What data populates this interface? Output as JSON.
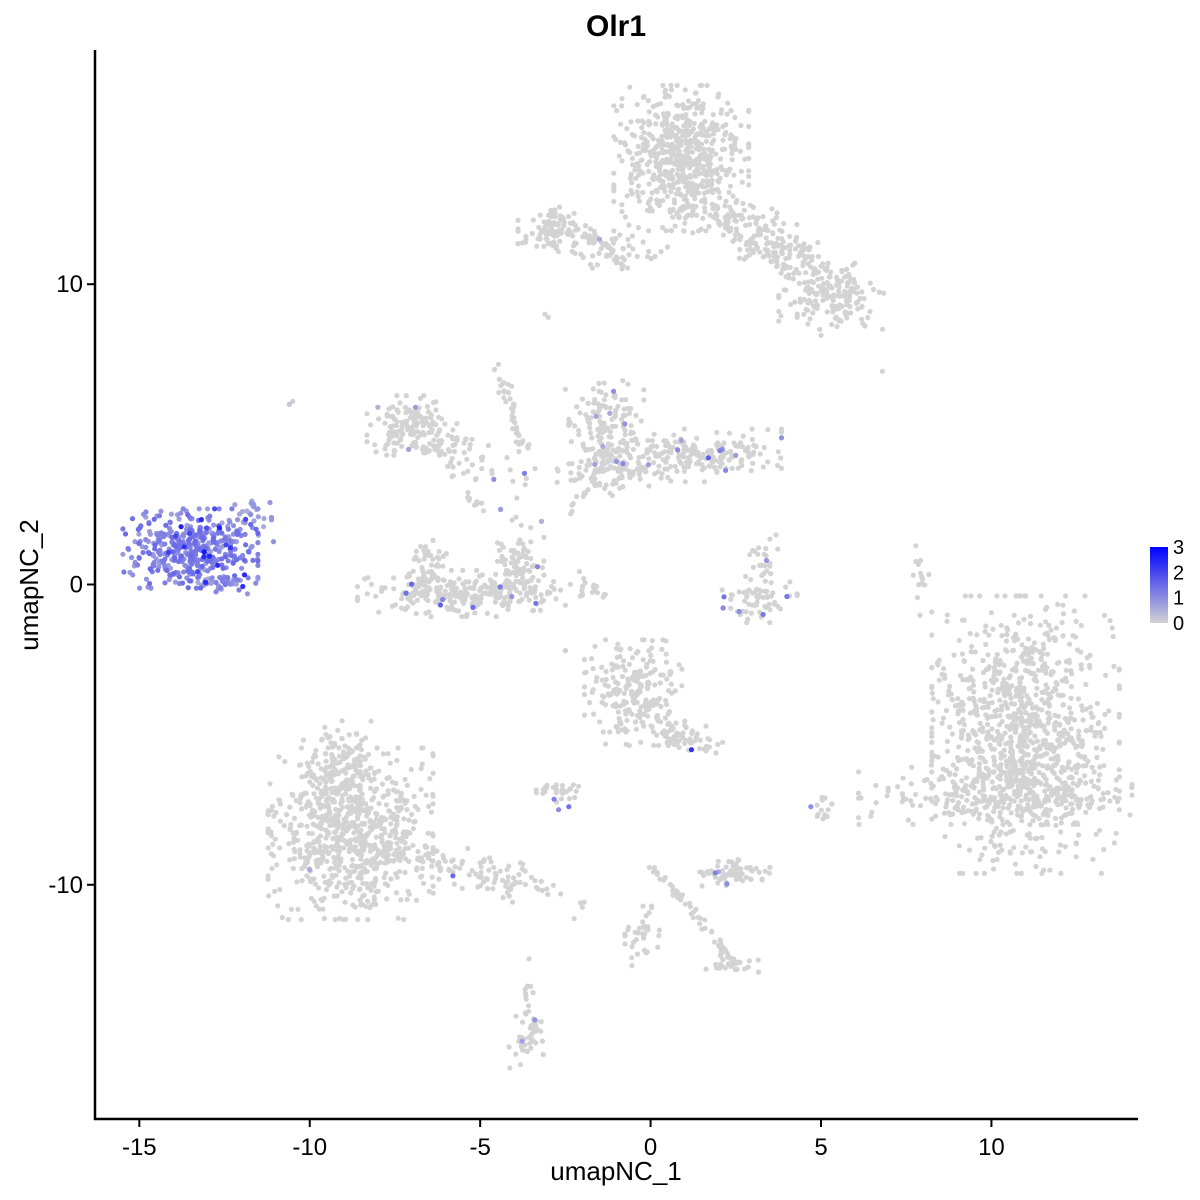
{
  "chart_data": {
    "type": "scatter",
    "title": "Olr1",
    "xlabel": "umapNC_1",
    "ylabel": "umapNC_2",
    "xlim": [
      -16.3,
      14.3
    ],
    "ylim": [
      -17.8,
      17.8
    ],
    "x_ticks": [
      -15,
      -10,
      -5,
      0,
      5,
      10
    ],
    "x_tick_labels": [
      "-15",
      "-10",
      "-5",
      "0",
      "5",
      "10"
    ],
    "y_ticks": [
      -10,
      0,
      10
    ],
    "y_tick_labels": [
      "-10",
      "0",
      "10"
    ],
    "grid": false,
    "legend": {
      "placement": "right",
      "type": "colorbar",
      "labels": [
        "3",
        "2",
        "1",
        "0"
      ],
      "values": [
        3,
        2,
        1,
        0
      ],
      "color_low": "#d3d3d3",
      "color_high": "#0000ff"
    },
    "clusters": [
      {
        "cx": 11.0,
        "cy": -5.0,
        "sx": 1.25,
        "sy": 2.1,
        "n": 1000,
        "expr": 0,
        "rot": 0
      },
      {
        "cx": 10.5,
        "cy": -7.0,
        "sx": 2.0,
        "sy": 0.45,
        "n": 220,
        "expr": 0,
        "rot": 0
      },
      {
        "cx": 0.9,
        "cy": 14.2,
        "sx": 0.9,
        "sy": 1.1,
        "n": 600,
        "expr": 0,
        "rot": 0
      },
      {
        "cx": 3.3,
        "cy": 11.5,
        "sx": 1.3,
        "sy": 0.45,
        "n": 180,
        "expr": 0,
        "rot": -0.6
      },
      {
        "cx": 5.3,
        "cy": 9.6,
        "sx": 0.7,
        "sy": 0.5,
        "n": 160,
        "expr": 0,
        "rot": 0
      },
      {
        "cx": -2.9,
        "cy": 11.8,
        "sx": 0.45,
        "sy": 0.35,
        "n": 90,
        "expr": 0,
        "rot": 0
      },
      {
        "cx": -1.0,
        "cy": 11.2,
        "sx": 0.8,
        "sy": 0.3,
        "n": 50,
        "expr": 0,
        "rot": 0
      },
      {
        "cx": -8.8,
        "cy": -8.3,
        "sx": 1.1,
        "sy": 1.3,
        "n": 700,
        "expr": 0,
        "rot": 0
      },
      {
        "cx": -9.2,
        "cy": -6.3,
        "sx": 0.5,
        "sy": 0.8,
        "n": 160,
        "expr": 0,
        "rot": 0
      },
      {
        "cx": -5.3,
        "cy": -9.5,
        "sx": 1.6,
        "sy": 0.3,
        "n": 130,
        "expr": 0,
        "rot": -0.3
      },
      {
        "cx": -0.4,
        "cy": -3.6,
        "sx": 0.7,
        "sy": 0.8,
        "n": 230,
        "expr": 0,
        "rot": 0
      },
      {
        "cx": 1.0,
        "cy": -5.0,
        "sx": 0.5,
        "sy": 0.25,
        "n": 50,
        "expr": 0,
        "rot": -0.5
      },
      {
        "cx": -7.0,
        "cy": 5.3,
        "sx": 0.6,
        "sy": 0.45,
        "n": 140,
        "expr": 0,
        "rot": 0
      },
      {
        "cx": -5.6,
        "cy": 4.4,
        "sx": 1.0,
        "sy": 0.35,
        "n": 60,
        "expr": 0,
        "rot": -0.5
      },
      {
        "cx": -1.3,
        "cy": 5.3,
        "sx": 0.5,
        "sy": 0.8,
        "n": 140,
        "expr": 0.04,
        "rot": 0
      },
      {
        "cx": 1.2,
        "cy": 4.3,
        "sx": 1.2,
        "sy": 0.4,
        "n": 220,
        "expr": 0.05,
        "rot": 0
      },
      {
        "cx": -1.2,
        "cy": 3.7,
        "sx": 0.7,
        "sy": 0.35,
        "n": 80,
        "expr": 0.02,
        "rot": 0
      },
      {
        "cx": -5.3,
        "cy": -0.3,
        "sx": 1.5,
        "sy": 0.35,
        "n": 260,
        "expr": 0.02,
        "rot": 0
      },
      {
        "cx": -6.6,
        "cy": 0.5,
        "sx": 0.3,
        "sy": 0.6,
        "n": 60,
        "expr": 0.02,
        "rot": 0
      },
      {
        "cx": -3.9,
        "cy": 0.7,
        "sx": 0.35,
        "sy": 0.7,
        "n": 80,
        "expr": 0.02,
        "rot": 0
      },
      {
        "cx": 3.2,
        "cy": -0.5,
        "sx": 0.5,
        "sy": 0.35,
        "n": 60,
        "expr": 0.12,
        "rot": 0
      },
      {
        "cx": 3.3,
        "cy": 0.7,
        "sx": 0.2,
        "sy": 0.5,
        "n": 25,
        "expr": 0.1,
        "rot": 0
      },
      {
        "cx": 2.4,
        "cy": -9.6,
        "sx": 0.5,
        "sy": 0.2,
        "n": 70,
        "expr": 0.03,
        "rot": 0
      },
      {
        "cx": -2.8,
        "cy": -6.9,
        "sx": 0.35,
        "sy": 0.2,
        "n": 30,
        "expr": 0.05,
        "rot": 0
      },
      {
        "cx": 2.4,
        "cy": -12.6,
        "sx": 0.35,
        "sy": 0.2,
        "n": 25,
        "expr": 0,
        "rot": 0
      },
      {
        "cx": -3.6,
        "cy": -15.0,
        "sx": 0.25,
        "sy": 0.5,
        "n": 45,
        "expr": 0.02,
        "rot": 0
      },
      {
        "cx": -0.2,
        "cy": -11.7,
        "sx": 0.25,
        "sy": 0.45,
        "n": 35,
        "expr": 0,
        "rot": 0
      },
      {
        "cx": 5.1,
        "cy": -7.4,
        "sx": 0.2,
        "sy": 0.25,
        "n": 12,
        "expr": 0.05,
        "rot": 0
      },
      {
        "cx": 7.9,
        "cy": 0.3,
        "sx": 0.12,
        "sy": 0.6,
        "n": 15,
        "expr": 0,
        "rot": 0
      },
      {
        "cx": -13.5,
        "cy": 1.2,
        "sx": 0.9,
        "sy": 0.6,
        "n": 420,
        "expr": 0.9,
        "rot": 0
      },
      {
        "cx": -12.4,
        "cy": 0.1,
        "sx": 0.4,
        "sy": 0.2,
        "n": 40,
        "expr": 0.75,
        "rot": 0
      },
      {
        "cx": -11.8,
        "cy": 2.2,
        "sx": 0.35,
        "sy": 0.35,
        "n": 30,
        "expr": 0.6,
        "rot": 0
      }
    ],
    "trails": [
      {
        "x1": -4.5,
        "y1": 7.3,
        "x2": -3.7,
        "y2": 4.5,
        "n": 40
      },
      {
        "x1": -6.0,
        "y1": 3.8,
        "x2": -4.9,
        "y2": 2.4,
        "n": 10
      },
      {
        "x1": -2.2,
        "y1": 0.6,
        "x2": -1.3,
        "y2": -0.5,
        "n": 12
      },
      {
        "x1": 0.0,
        "y1": -9.3,
        "x2": 2.5,
        "y2": -12.6,
        "n": 55
      },
      {
        "x1": -3.6,
        "y1": -12.0,
        "x2": -3.6,
        "y2": -14.0,
        "n": 8
      },
      {
        "x1": 1.8,
        "y1": 12.3,
        "x2": 4.3,
        "y2": 10.2,
        "n": 40
      },
      {
        "x1": -2.5,
        "y1": 12.0,
        "x2": -0.7,
        "y2": 10.6,
        "n": 25
      },
      {
        "x1": 8.4,
        "y1": -2.5,
        "x2": 9.5,
        "y2": -5.5,
        "n": 25
      },
      {
        "x1": -1.4,
        "y1": 3.8,
        "x2": -2.3,
        "y2": 2.4,
        "n": 12
      }
    ],
    "points": [
      {
        "x": -10.5,
        "y": 6.1,
        "expr": 0.1
      },
      {
        "x": -10.6,
        "y": 6.0,
        "expr": 0.2
      },
      {
        "x": -3.1,
        "y": 9.0,
        "expr": 0
      },
      {
        "x": -3.0,
        "y": 8.9,
        "expr": 0
      },
      {
        "x": 6.8,
        "y": 7.1,
        "expr": 0
      },
      {
        "x": 5.0,
        "y": 8.3,
        "expr": 0
      },
      {
        "x": -2.5,
        "y": 6.5,
        "expr": 0
      },
      {
        "x": -2.5,
        "y": -2.2,
        "expr": 0.1
      },
      {
        "x": 1.2,
        "y": -5.5,
        "expr": 2.3
      },
      {
        "x": -2.4,
        "y": -7.4,
        "expr": 1.4
      },
      {
        "x": -5.8,
        "y": -9.7,
        "expr": 1.5
      },
      {
        "x": -6.1,
        "y": -0.5,
        "expr": 1.1
      },
      {
        "x": -3.4,
        "y": -14.5,
        "expr": 0.9
      },
      {
        "x": -4.6,
        "y": 3.5,
        "expr": 1.0
      },
      {
        "x": -3.7,
        "y": 3.7,
        "expr": 1.2
      },
      {
        "x": -4.4,
        "y": 2.5,
        "expr": 0.8
      },
      {
        "x": 1.9,
        "y": -9.6,
        "expr": 1.2
      },
      {
        "x": 3.3,
        "y": -1.0,
        "expr": 1.3
      },
      {
        "x": 4.0,
        "y": -0.4,
        "expr": 1.3
      },
      {
        "x": 2.6,
        "y": -0.9,
        "expr": 1.0
      },
      {
        "x": 3.4,
        "y": 0.8,
        "expr": 0.9
      },
      {
        "x": 4.7,
        "y": -7.4,
        "expr": 1.0
      },
      {
        "x": -6.9,
        "y": 5.9,
        "expr": 0.8
      },
      {
        "x": -7.1,
        "y": 4.5,
        "expr": 0.7
      },
      {
        "x": -1.0,
        "y": 4.1,
        "expr": 0.9
      },
      {
        "x": 2.1,
        "y": 4.5,
        "expr": 1.0
      },
      {
        "x": 2.2,
        "y": 3.8,
        "expr": 1.1
      },
      {
        "x": 2.5,
        "y": 4.3,
        "expr": 0.8
      },
      {
        "x": 0.9,
        "y": 4.8,
        "expr": 0.7
      },
      {
        "x": -1.6,
        "y": 5.6,
        "expr": 0.7
      },
      {
        "x": -1.2,
        "y": 5.7,
        "expr": 0.6
      },
      {
        "x": -1.4,
        "y": 4.6,
        "expr": 0.6
      },
      {
        "x": -1.5,
        "y": 11.5,
        "expr": 0.6
      },
      {
        "x": -8.0,
        "y": 5.9,
        "expr": 0.5
      },
      {
        "x": -10.0,
        "y": -9.5,
        "expr": 0.6
      },
      {
        "x": -2.7,
        "y": -7.5,
        "expr": 1.0
      },
      {
        "x": -3.2,
        "y": 2.1,
        "expr": 0.5
      }
    ]
  }
}
